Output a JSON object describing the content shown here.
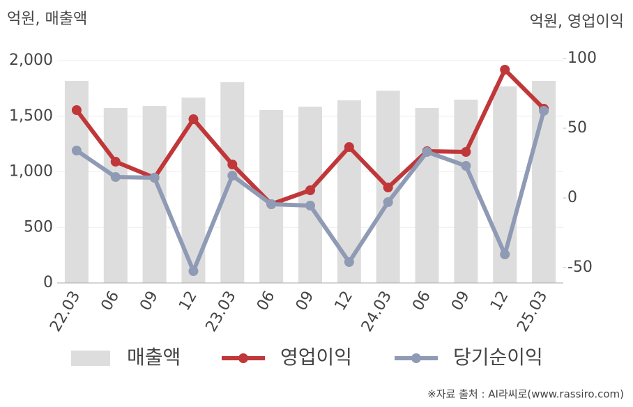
{
  "chart_data": {
    "type": "bar-line",
    "left_unit": "억원, 매출액",
    "right_unit": "억원, 영업이익",
    "categories": [
      "22.03",
      "06",
      "09",
      "12",
      "23.03",
      "06",
      "09",
      "12",
      "24.03",
      "06",
      "09",
      "12",
      "25.03"
    ],
    "series": [
      {
        "name": "매출액",
        "kind": "bar",
        "color": "#dddddd",
        "values": [
          1818,
          1574,
          1592,
          1668,
          1806,
          1555,
          1586,
          1643,
          1730,
          1574,
          1649,
          1768,
          1818
        ]
      },
      {
        "name": "영업이익",
        "kind": "line",
        "axis": "y2",
        "color": "#c0373a",
        "values": [
          63,
          26,
          14.5,
          56.5,
          24,
          -4.5,
          5.5,
          36.5,
          7.5,
          33.5,
          33,
          92,
          64
        ]
      },
      {
        "name": "당기순이익",
        "kind": "line",
        "axis": "y2",
        "color": "#8f9bb5",
        "values": [
          34,
          15,
          14.5,
          -52.5,
          16,
          -4.5,
          -5.5,
          -46,
          -3,
          33,
          23,
          -40.5,
          62.5
        ]
      }
    ],
    "ylim": [
      0,
      2000
    ],
    "yticks": [
      0,
      500,
      {
        "value": 1000,
        "label": "1,000"
      },
      {
        "value": 1500,
        "label": "1,500"
      },
      {
        "value": 2000,
        "label": "2,000"
      }
    ],
    "y2lim": [
      -61,
      98.5
    ],
    "y2ticks": [
      -50,
      0,
      50,
      100
    ],
    "grid": true,
    "source": "※자료 출처 : AI라씨로(www.rassiro.com)"
  }
}
